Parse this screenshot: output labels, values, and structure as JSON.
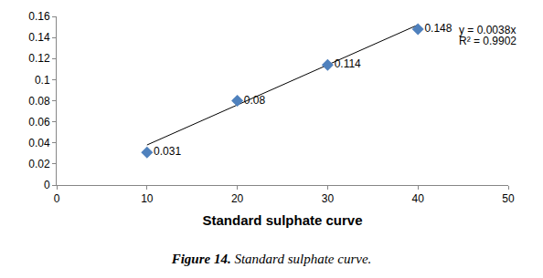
{
  "chart_data": {
    "type": "scatter",
    "x_label": "Standard sulphate curve",
    "x": [
      10,
      20,
      30,
      40
    ],
    "values": [
      0.031,
      0.08,
      0.114,
      0.148
    ],
    "color": "#4f81bd",
    "marker": "diamond",
    "data_labels": true,
    "trendline": {
      "slope": 0.0038
    },
    "annotations": [
      "y = 0.0038x",
      "R² = 0.9902"
    ],
    "xlim": [
      0,
      50
    ],
    "xticks": [
      0,
      10,
      20,
      30,
      40,
      50
    ],
    "ylim": [
      0,
      0.16
    ],
    "yticks": [
      0,
      0.02,
      0.04,
      0.06,
      0.08,
      0.1,
      0.12,
      0.14,
      0.16
    ],
    "grid": false,
    "caption": {
      "label": "Figure 14.",
      "text": "Standard sulphate curve."
    }
  }
}
